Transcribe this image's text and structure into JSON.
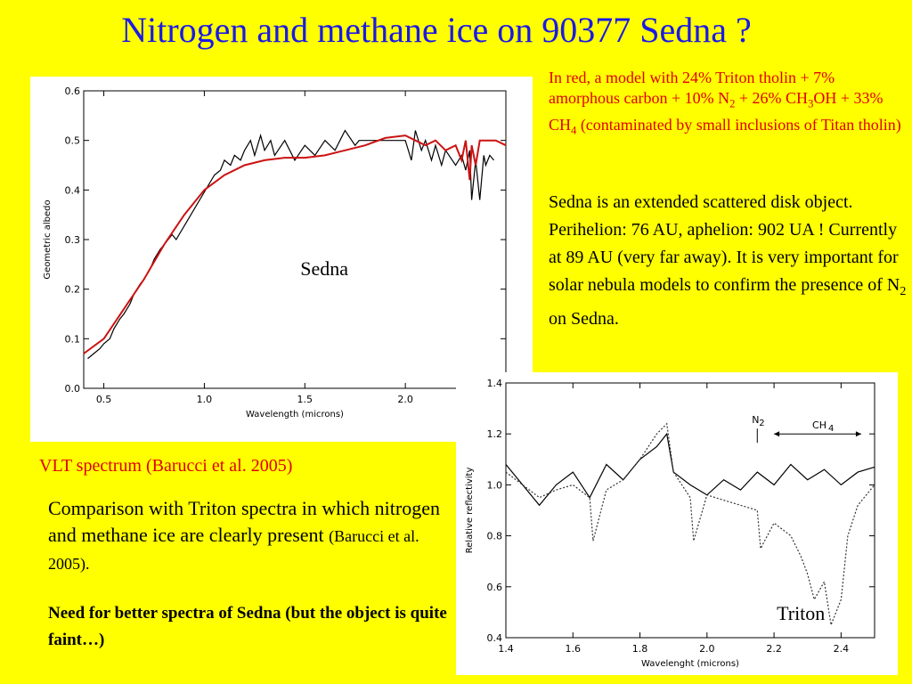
{
  "title": "Nitrogen and methane ice on 90377 Sedna ?",
  "model_note": {
    "p1": "In red, a model with 24% Triton tholin + 7% amorphous carbon + 10% N",
    "p1_sub": "2",
    "p2": " + 26% CH",
    "p2_sub": "3",
    "p3": "OH + 33% CH",
    "p3_sub": "4",
    "p4": " (contaminated by small inclusions of Titan tholin)"
  },
  "info": {
    "text": "Sedna is an extended scattered disk object. Perihelion: 76 AU, aphelion: 902 UA ! Currently at 89 AU (very far away). It is very important for  solar nebula models to confirm the presence of N",
    "sub": "2",
    "tail": " on Sedna."
  },
  "caption": "VLT spectrum (Barucci et al. 2005)",
  "compare": {
    "main": "Comparison with Triton spectra in which nitrogen and methane ice are clearly present ",
    "ref": "(Barucci et al. 2005)."
  },
  "need": "Need for better spectra of Sedna (but the object is quite faint…)",
  "colors": {
    "background": "#ffff00",
    "title": "#1a1ae6",
    "accent_red": "#e00000"
  },
  "chart_data": [
    {
      "type": "line",
      "annotation": "Sedna",
      "xlabel": "Wavelength (microns)",
      "ylabel": "Geometric albedo",
      "xlim": [
        0.4,
        2.5
      ],
      "ylim": [
        0.0,
        0.6
      ],
      "xticks": [
        "0.5",
        "1.0",
        "1.5",
        "2.0"
      ],
      "xtick_values": [
        0.5,
        1.0,
        1.5,
        2.0
      ],
      "yticks": [
        "0.0",
        "0.1",
        "0.2",
        "0.3",
        "0.4",
        "0.5",
        "0.6"
      ],
      "ytick_values": [
        0.0,
        0.1,
        0.2,
        0.3,
        0.4,
        0.5,
        0.6
      ],
      "series": [
        {
          "style": "observed",
          "color": "#000000",
          "x": [
            0.42,
            0.45,
            0.48,
            0.5,
            0.53,
            0.55,
            0.58,
            0.6,
            0.63,
            0.65,
            0.68,
            0.7,
            0.73,
            0.75,
            0.78,
            0.8,
            0.82,
            0.84,
            0.86,
            1.05,
            1.08,
            1.1,
            1.13,
            1.15,
            1.18,
            1.2,
            1.23,
            1.25,
            1.28,
            1.3,
            1.33,
            1.35,
            1.4,
            1.45,
            1.5,
            1.55,
            1.6,
            1.65,
            1.7,
            1.75,
            1.77,
            2.0,
            2.03,
            2.05,
            2.08,
            2.1,
            2.13,
            2.15,
            2.18,
            2.2,
            2.25,
            2.28,
            2.3,
            2.32,
            2.33,
            2.35,
            2.37,
            2.39,
            2.4,
            2.42,
            2.44
          ],
          "y": [
            0.06,
            0.07,
            0.08,
            0.09,
            0.1,
            0.12,
            0.14,
            0.15,
            0.17,
            0.19,
            0.21,
            0.22,
            0.24,
            0.26,
            0.28,
            0.29,
            0.3,
            0.31,
            0.3,
            0.43,
            0.44,
            0.46,
            0.45,
            0.47,
            0.46,
            0.48,
            0.5,
            0.47,
            0.51,
            0.48,
            0.5,
            0.47,
            0.5,
            0.46,
            0.49,
            0.47,
            0.5,
            0.48,
            0.52,
            0.49,
            0.5,
            0.5,
            0.46,
            0.52,
            0.48,
            0.5,
            0.46,
            0.49,
            0.45,
            0.48,
            0.45,
            0.47,
            0.44,
            0.48,
            0.38,
            0.46,
            0.38,
            0.47,
            0.45,
            0.47,
            0.46
          ]
        },
        {
          "style": "model",
          "color": "#cc1111",
          "x": [
            0.4,
            0.5,
            0.6,
            0.7,
            0.8,
            0.9,
            1.0,
            1.1,
            1.2,
            1.3,
            1.4,
            1.5,
            1.6,
            1.7,
            1.8,
            1.9,
            2.0,
            2.05,
            2.1,
            2.15,
            2.2,
            2.25,
            2.28,
            2.3,
            2.32,
            2.33,
            2.35,
            2.37,
            2.4,
            2.45,
            2.5
          ],
          "y": [
            0.07,
            0.1,
            0.16,
            0.22,
            0.29,
            0.35,
            0.4,
            0.43,
            0.45,
            0.46,
            0.465,
            0.465,
            0.47,
            0.48,
            0.49,
            0.505,
            0.51,
            0.5,
            0.49,
            0.5,
            0.48,
            0.49,
            0.46,
            0.5,
            0.42,
            0.49,
            0.45,
            0.5,
            0.5,
            0.5,
            0.49
          ]
        }
      ]
    },
    {
      "type": "line",
      "annotation": "Triton",
      "xlabel": "Wavelenght (microns)",
      "ylabel": "Relative reflectivity",
      "xlim": [
        1.4,
        2.5
      ],
      "ylim": [
        0.4,
        1.4
      ],
      "xticks": [
        "1.4",
        "1.6",
        "1.8",
        "2.0",
        "2.2",
        "2.4"
      ],
      "xtick_values": [
        1.4,
        1.6,
        1.8,
        2.0,
        2.2,
        2.4
      ],
      "yticks": [
        "0.4",
        "0.6",
        "0.8",
        "1.0",
        "1.2",
        "1.4"
      ],
      "ytick_values": [
        0.4,
        0.6,
        0.8,
        1.0,
        1.2,
        1.4
      ],
      "labels": {
        "n2": "N",
        "n2_sub": "2",
        "ch4": "CH",
        "ch4_sub": "4"
      },
      "markers": {
        "n2_x": 2.15,
        "ch4_range": [
          2.2,
          2.46
        ]
      },
      "series": [
        {
          "style": "solid",
          "color": "#000000",
          "x": [
            1.4,
            1.45,
            1.5,
            1.55,
            1.6,
            1.65,
            1.7,
            1.75,
            1.8,
            1.85,
            1.88,
            1.9,
            1.95,
            2.0,
            2.05,
            2.1,
            2.15,
            2.2,
            2.25,
            2.3,
            2.35,
            2.4,
            2.45,
            2.5
          ],
          "y": [
            1.08,
            1.0,
            0.92,
            1.0,
            1.05,
            0.95,
            1.08,
            1.02,
            1.1,
            1.15,
            1.2,
            1.05,
            1.0,
            0.96,
            1.02,
            0.98,
            1.05,
            1.0,
            1.08,
            1.02,
            1.06,
            1.0,
            1.05,
            1.07
          ]
        },
        {
          "style": "dotted",
          "color": "#333333",
          "x": [
            1.4,
            1.45,
            1.5,
            1.55,
            1.6,
            1.65,
            1.66,
            1.7,
            1.75,
            1.8,
            1.85,
            1.88,
            1.9,
            1.95,
            1.96,
            2.0,
            2.05,
            2.1,
            2.15,
            2.16,
            2.2,
            2.25,
            2.28,
            2.3,
            2.32,
            2.35,
            2.37,
            2.4,
            2.42,
            2.45,
            2.5
          ],
          "y": [
            1.05,
            1.0,
            0.95,
            0.98,
            1.0,
            0.95,
            0.78,
            0.98,
            1.02,
            1.1,
            1.2,
            1.24,
            1.05,
            0.95,
            0.78,
            0.96,
            0.94,
            0.92,
            0.9,
            0.75,
            0.85,
            0.8,
            0.72,
            0.65,
            0.55,
            0.62,
            0.45,
            0.55,
            0.8,
            0.92,
            1.0
          ]
        }
      ]
    }
  ]
}
